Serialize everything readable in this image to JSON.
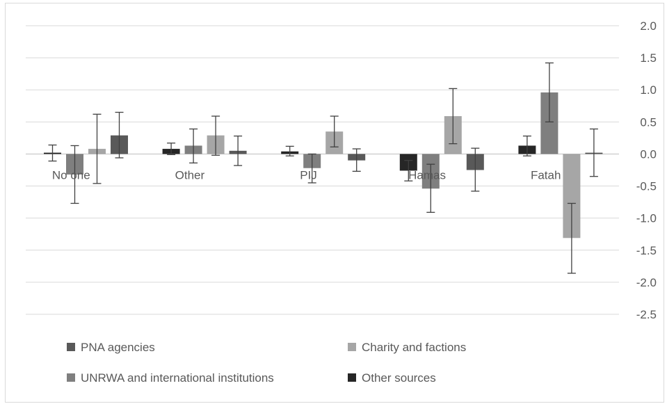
{
  "chart_data": {
    "type": "bar",
    "title": "",
    "xlabel": "",
    "ylabel": "",
    "ylim": [
      -2.5,
      2.0
    ],
    "y_ticks": [
      2.0,
      1.5,
      1.0,
      0.5,
      0.0,
      -0.5,
      -1.0,
      -1.5,
      -2.0,
      -2.5
    ],
    "y_tick_labels": [
      "2.0",
      "1.5",
      "1.0",
      "0.5",
      "0.0",
      "-0.5",
      "-1.0",
      "-1.5",
      "-2.0",
      "-2.5"
    ],
    "y_axis_position": "right",
    "grid": true,
    "categories": [
      "No one",
      "Other",
      "PIJ",
      "Hamas",
      "Fatah"
    ],
    "series_order_in_group": [
      "Other sources",
      "UNRWA and international institutions",
      "Charity and factions",
      "PNA agencies"
    ],
    "series": [
      {
        "name": "PNA agencies",
        "color": "#595959",
        "values": [
          0.29,
          0.05,
          -0.1,
          -0.25,
          0.02
        ],
        "error_low": [
          -0.06,
          -0.18,
          -0.27,
          -0.58,
          -0.35
        ],
        "error_high": [
          0.65,
          0.28,
          0.08,
          0.09,
          0.39
        ]
      },
      {
        "name": "Charity and factions",
        "color": "#a6a6a6",
        "values": [
          0.08,
          0.29,
          0.35,
          0.59,
          -1.31
        ],
        "error_low": [
          -0.46,
          -0.02,
          0.11,
          0.16,
          -1.86
        ],
        "error_high": [
          0.62,
          0.59,
          0.59,
          1.02,
          -0.77
        ]
      },
      {
        "name": "UNRWA and international institutions",
        "color": "#7f7f7f",
        "values": [
          -0.32,
          0.13,
          -0.22,
          -0.54,
          0.96
        ],
        "error_low": [
          -0.77,
          -0.14,
          -0.45,
          -0.91,
          0.5
        ],
        "error_high": [
          0.13,
          0.39,
          0.0,
          -0.16,
          1.42
        ]
      },
      {
        "name": "Other sources",
        "color": "#262626",
        "values": [
          0.02,
          0.08,
          0.04,
          -0.26,
          0.13
        ],
        "error_low": [
          -0.11,
          -0.01,
          -0.03,
          -0.42,
          -0.03
        ],
        "error_high": [
          0.14,
          0.17,
          0.12,
          -0.1,
          0.28
        ]
      }
    ],
    "legend": {
      "placement": "bottom",
      "entries": [
        "PNA agencies",
        "Charity and factions",
        "UNRWA and international institutions",
        "Other sources"
      ]
    }
  }
}
